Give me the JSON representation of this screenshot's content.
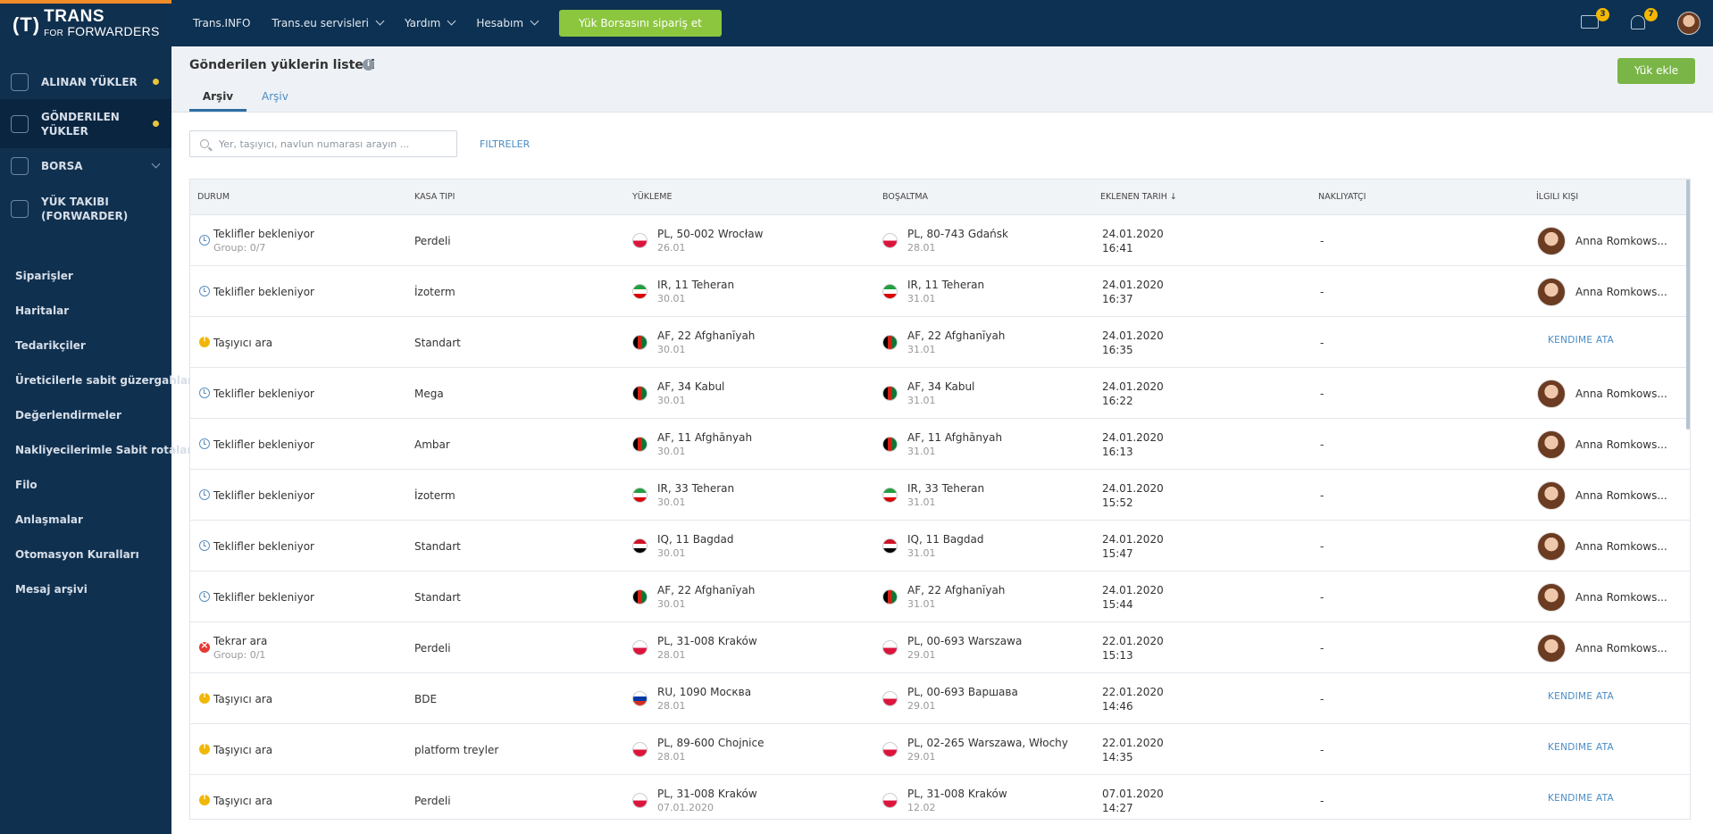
{
  "brand": {
    "mark": "(T)",
    "line1": "TRANS",
    "line2_small": "FOR",
    "line2": "FORWARDERS"
  },
  "sidebar": {
    "main": [
      {
        "label": "ALINAN YÜKLER",
        "dot": true
      },
      {
        "label": "GÖNDERILEN YÜKLER",
        "dot": true,
        "active": true
      },
      {
        "label": "BORSA",
        "chevron": true
      },
      {
        "label": "YÜK TAKIBI (FORWARDER)"
      }
    ],
    "sub": [
      "Siparişler",
      "Haritalar",
      "Tedarikçiler",
      "Üreticilerle sabit güzergahlar",
      "Değerlendirmeler",
      "Nakliyecilerimle Sabit rotalar",
      "Filo",
      "Anlaşmalar",
      "Otomasyon Kuralları",
      "Mesaj arşivi"
    ]
  },
  "topbar": {
    "items": [
      "Trans.INFO",
      "Trans.eu servisleri",
      "Yardım",
      "Hesabım"
    ],
    "cta": "Yük Borsasını sipariş et",
    "messages_count": "3",
    "notifications_count": "7"
  },
  "header": {
    "title": "Gönderilen yüklerin listesi",
    "info": "i",
    "tab_active": "Arşiv",
    "tab_inactive": "Arşiv",
    "add_button": "Yük ekle"
  },
  "search": {
    "placeholder": "Yer, taşıyıcı, navlun numarası arayın ...",
    "value": "",
    "filters": "FILTRELER"
  },
  "table": {
    "columns": [
      "DURUM",
      "KASA TIPI",
      "YÜKLEME",
      "BOŞALTMA",
      "EKLENEN TARIH ↓",
      "NAKLIYATÇI",
      "İLGILI KIŞI"
    ],
    "assign_label": "KENDIME ATA",
    "rows": [
      {
        "status": "Teklifler bekleniyor",
        "status_sub": "Group: 0/7",
        "icon": "clock",
        "body": "Perdeli",
        "load": "PL, 50-002 Wrocław",
        "load_date": "26.01",
        "load_flag": "pl",
        "unload": "PL, 80-743 Gdańsk",
        "unload_date": "28.01",
        "unload_flag": "pl",
        "added_date": "24.01.2020",
        "added_time": "16:41",
        "carrier": "-",
        "person": "Anna Romkows..."
      },
      {
        "status": "Teklifler bekleniyor",
        "status_sub": "",
        "icon": "clock",
        "body": "İzoterm",
        "load": "IR, 11 Teheran",
        "load_date": "30.01",
        "load_flag": "ir",
        "unload": "IR, 11 Teheran",
        "unload_date": "31.01",
        "unload_flag": "ir",
        "added_date": "24.01.2020",
        "added_time": "16:37",
        "carrier": "-",
        "person": "Anna Romkows..."
      },
      {
        "status": "Taşıyıcı ara",
        "status_sub": "",
        "icon": "warn",
        "body": "Standart",
        "load": "AF, 22 Afghanīyah",
        "load_date": "30.01",
        "load_flag": "af",
        "unload": "AF, 22 Afghanīyah",
        "unload_date": "31.01",
        "unload_flag": "af",
        "added_date": "24.01.2020",
        "added_time": "16:35",
        "carrier": "-",
        "person": ""
      },
      {
        "status": "Teklifler bekleniyor",
        "status_sub": "",
        "icon": "clock",
        "body": "Mega",
        "load": "AF, 34 Kabul",
        "load_date": "30.01",
        "load_flag": "af",
        "unload": "AF, 34 Kabul",
        "unload_date": "31.01",
        "unload_flag": "af",
        "added_date": "24.01.2020",
        "added_time": "16:22",
        "carrier": "-",
        "person": "Anna Romkows..."
      },
      {
        "status": "Teklifler bekleniyor",
        "status_sub": "",
        "icon": "clock",
        "body": "Ambar",
        "load": "AF, 11 Afghānyah",
        "load_date": "30.01",
        "load_flag": "af",
        "unload": "AF, 11 Afghānyah",
        "unload_date": "31.01",
        "unload_flag": "af",
        "added_date": "24.01.2020",
        "added_time": "16:13",
        "carrier": "-",
        "person": "Anna Romkows..."
      },
      {
        "status": "Teklifler bekleniyor",
        "status_sub": "",
        "icon": "clock",
        "body": "İzoterm",
        "load": "IR, 33 Teheran",
        "load_date": "30.01",
        "load_flag": "ir",
        "unload": "IR, 33 Teheran",
        "unload_date": "31.01",
        "unload_flag": "ir",
        "added_date": "24.01.2020",
        "added_time": "15:52",
        "carrier": "-",
        "person": "Anna Romkows..."
      },
      {
        "status": "Teklifler bekleniyor",
        "status_sub": "",
        "icon": "clock",
        "body": "Standart",
        "load": "IQ, 11 Bagdad",
        "load_date": "30.01",
        "load_flag": "iq",
        "unload": "IQ, 11 Bagdad",
        "unload_date": "31.01",
        "unload_flag": "iq",
        "added_date": "24.01.2020",
        "added_time": "15:47",
        "carrier": "-",
        "person": "Anna Romkows..."
      },
      {
        "status": "Teklifler bekleniyor",
        "status_sub": "",
        "icon": "clock",
        "body": "Standart",
        "load": "AF, 22 Afghanīyah",
        "load_date": "30.01",
        "load_flag": "af",
        "unload": "AF, 22 Afghanīyah",
        "unload_date": "31.01",
        "unload_flag": "af",
        "added_date": "24.01.2020",
        "added_time": "15:44",
        "carrier": "-",
        "person": "Anna Romkows..."
      },
      {
        "status": "Tekrar ara",
        "status_sub": "Group: 0/1",
        "icon": "err",
        "body": "Perdeli",
        "load": "PL, 31-008 Kraków",
        "load_date": "28.01",
        "load_flag": "pl",
        "unload": "PL, 00-693 Warszawa",
        "unload_date": "29.01",
        "unload_flag": "pl",
        "added_date": "22.01.2020",
        "added_time": "15:13",
        "carrier": "-",
        "person": "Anna Romkows..."
      },
      {
        "status": "Taşıyıcı ara",
        "status_sub": "",
        "icon": "warn",
        "body": "BDE",
        "load": "RU, 1090 Москва",
        "load_date": "28.01",
        "load_flag": "ru",
        "unload": "PL, 00-693 Варшава",
        "unload_date": "29.01",
        "unload_flag": "pl",
        "added_date": "22.01.2020",
        "added_time": "14:46",
        "carrier": "-",
        "person": ""
      },
      {
        "status": "Taşıyıcı ara",
        "status_sub": "",
        "icon": "warn",
        "body": "platform treyler",
        "load": "PL, 89-600 Chojnice",
        "load_date": "28.01",
        "load_flag": "pl",
        "unload": "PL, 02-265 Warszawa, Włochy",
        "unload_date": "29.01",
        "unload_flag": "pl",
        "added_date": "22.01.2020",
        "added_time": "14:35",
        "carrier": "-",
        "person": ""
      },
      {
        "status": "Taşıyıcı ara",
        "status_sub": "",
        "icon": "warn",
        "body": "Perdeli",
        "load": "PL, 31-008 Kraków",
        "load_date": "07.01.2020",
        "load_flag": "pl",
        "unload": "PL, 31-008 Kraków",
        "unload_date": "12.02",
        "unload_flag": "pl",
        "added_date": "07.01.2020",
        "added_time": "14:27",
        "carrier": "-",
        "person": ""
      }
    ]
  }
}
